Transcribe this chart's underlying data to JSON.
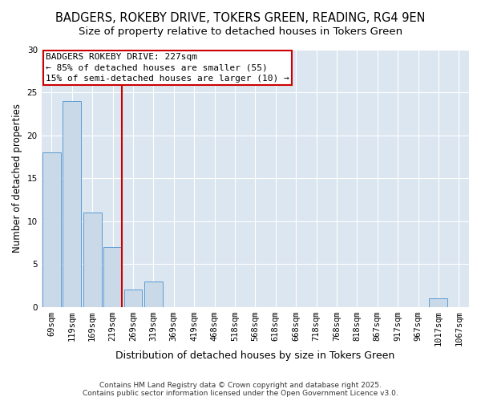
{
  "title": "BADGERS, ROKEBY DRIVE, TOKERS GREEN, READING, RG4 9EN",
  "subtitle": "Size of property relative to detached houses in Tokers Green",
  "xlabel": "Distribution of detached houses by size in Tokers Green",
  "ylabel": "Number of detached properties",
  "bar_labels": [
    "69sqm",
    "119sqm",
    "169sqm",
    "219sqm",
    "269sqm",
    "319sqm",
    "369sqm",
    "419sqm",
    "468sqm",
    "518sqm",
    "568sqm",
    "618sqm",
    "668sqm",
    "718sqm",
    "768sqm",
    "818sqm",
    "867sqm",
    "917sqm",
    "967sqm",
    "1017sqm",
    "1067sqm"
  ],
  "bar_values": [
    18,
    24,
    11,
    7,
    2,
    3,
    0,
    0,
    0,
    0,
    0,
    0,
    0,
    0,
    0,
    0,
    0,
    0,
    0,
    1,
    0
  ],
  "bar_color": "#c9d9e8",
  "bar_edge_color": "#5b9bd5",
  "vline_color": "#cc0000",
  "annotation_title": "BADGERS ROKEBY DRIVE: 227sqm",
  "annotation_line1": "← 85% of detached houses are smaller (55)",
  "annotation_line2": "15% of semi-detached houses are larger (10) →",
  "annotation_box_color": "#cc0000",
  "ylim": [
    0,
    30
  ],
  "yticks": [
    0,
    5,
    10,
    15,
    20,
    25,
    30
  ],
  "figure_background": "#ffffff",
  "plot_background": "#dce6f0",
  "grid_color": "#ffffff",
  "footer": "Contains HM Land Registry data © Crown copyright and database right 2025.\nContains public sector information licensed under the Open Government Licence v3.0.",
  "title_fontsize": 10.5,
  "subtitle_fontsize": 9.5,
  "xlabel_fontsize": 9,
  "ylabel_fontsize": 8.5,
  "tick_fontsize": 7.5,
  "annotation_fontsize": 8,
  "footer_fontsize": 6.5
}
